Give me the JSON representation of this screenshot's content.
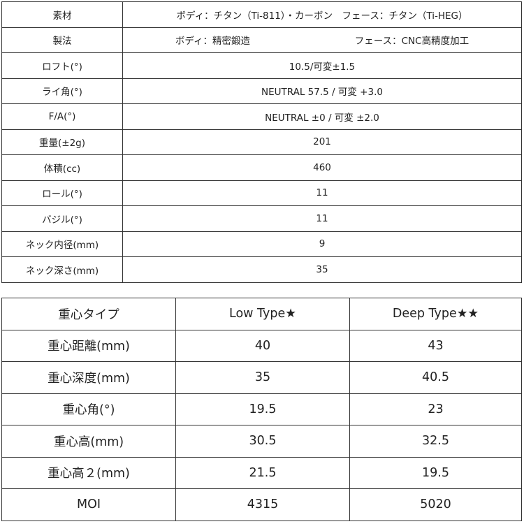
{
  "spec_table": {
    "rows": [
      {
        "label": "素材",
        "value": "ボディ：チタン（Ti-811）・カーボン　フェース：チタン（Ti-HEG）"
      },
      {
        "label": "製法",
        "value_left": "ボディ：精密鍛造",
        "value_right": "フェース：CNC高精度加工"
      },
      {
        "label": "ロフト(°)",
        "value": "10.5/可変±1.5"
      },
      {
        "label": "ライ角(°)",
        "value": "NEUTRAL 57.5 / 可変 +3.0"
      },
      {
        "label": "F/A(°)",
        "value": "NEUTRAL ±0 / 可変 ±2.0"
      },
      {
        "label": "重量(±2g)",
        "value": "201"
      },
      {
        "label": "体積(cc)",
        "value": "460"
      },
      {
        "label": "ロール(°)",
        "value": "11"
      },
      {
        "label": "バジル(°)",
        "value": "11"
      },
      {
        "label": "ネック内径(mm)",
        "value": "9"
      },
      {
        "label": "ネック深さ(mm)",
        "value": "35"
      }
    ]
  },
  "cg_table": {
    "headers": [
      "重心タイプ",
      "Low Type★",
      "Deep Type★★"
    ],
    "rows": [
      [
        "重心距離(mm)",
        "40",
        "43"
      ],
      [
        "重心深度(mm)",
        "35",
        "40.5"
      ],
      [
        "重心角(°)",
        "19.5",
        "23"
      ],
      [
        "重心高(mm)",
        "30.5",
        "32.5"
      ],
      [
        "重心高２(mm)",
        "21.5",
        "19.5"
      ],
      [
        "MOI",
        "4315",
        "5020"
      ]
    ]
  }
}
